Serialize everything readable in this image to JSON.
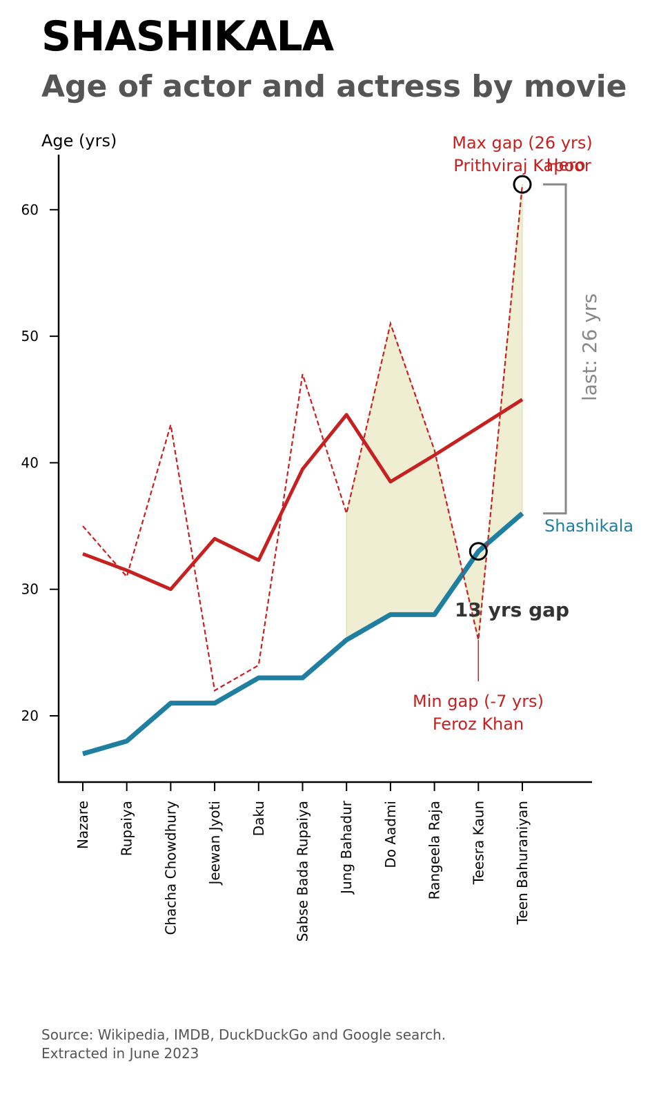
{
  "title": "SHASHIKALA",
  "subtitle": "Age of actor and actress by movie",
  "source": {
    "line1": "Source: Wikipedia, IMDB, DuckDuckGo and Google search.",
    "line2": "Extracted in June 2023"
  },
  "colors": {
    "actress": "#1f7fa0",
    "actor": "#c62020",
    "gap_fill": "#efeed3",
    "bracket": "#888888",
    "axis": "#000000"
  },
  "chart_data": {
    "type": "line",
    "ylabel": "Age (yrs)",
    "ylim": [
      14.8,
      64
    ],
    "yticks": [
      20,
      30,
      40,
      50,
      60
    ],
    "categories": [
      "Nazare",
      "Rupaiya",
      "Chacha Chowdhury",
      "Jeewan Jyoti",
      "Daku",
      "Sabse Bada Rupaiya",
      "Jung Bahadur",
      "Do Aadmi",
      "Rangeela Raja",
      "Teesra Kaun",
      "Teen Bahuraniyan"
    ],
    "series": [
      {
        "name": "Shashikala",
        "role": "actress",
        "values": [
          17,
          18,
          21,
          21,
          23,
          23,
          26,
          28,
          28,
          33,
          36
        ]
      },
      {
        "role": "actor",
        "values": [
          35,
          31,
          43,
          22,
          24,
          47,
          36,
          51,
          41,
          26,
          62
        ]
      },
      {
        "role": "actor-smoothed",
        "values": [
          32.8,
          31.5,
          30,
          34,
          32.3,
          39.5,
          43.8,
          38.5,
          40.6,
          42.8,
          45
        ]
      }
    ],
    "gap_shading_from_index": 6,
    "annotations": {
      "max_gap": {
        "index": 10,
        "line1": "Max gap (26 yrs)",
        "line2": "Prithviraj Kapoor",
        "overlay": "Hero"
      },
      "min_gap": {
        "index": 9,
        "line1": "Min gap (-7 yrs)",
        "line2": "Feroz Khan"
      },
      "gap_label": "13 yrs gap",
      "last_gap_label": "last: 26 yrs",
      "series_label": "Shashikala"
    }
  }
}
